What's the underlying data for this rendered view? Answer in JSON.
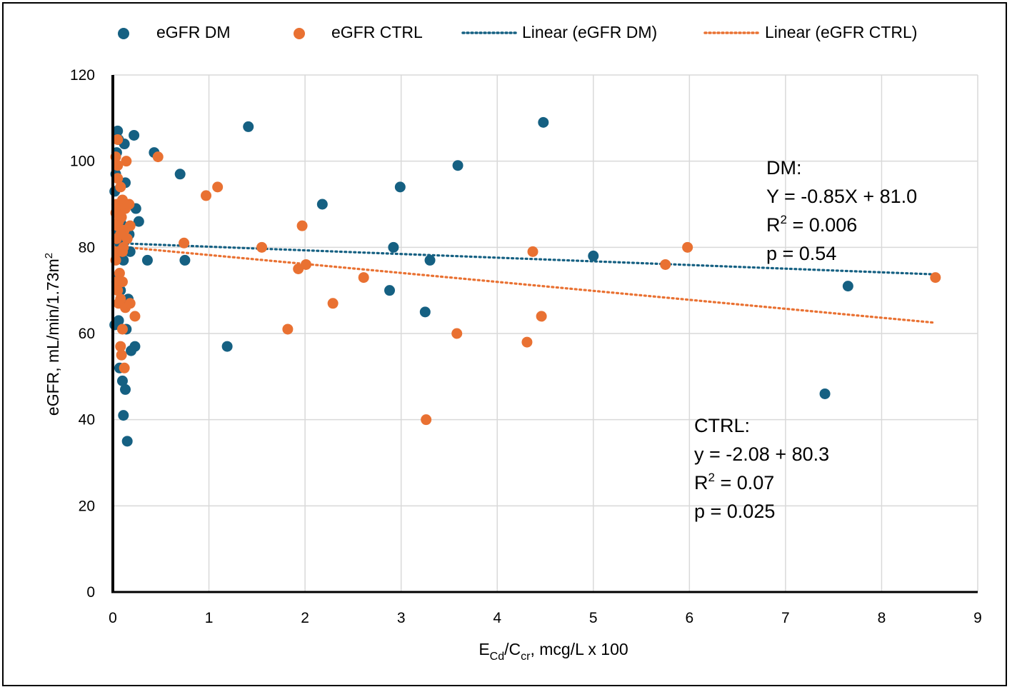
{
  "chart_data": {
    "type": "scatter",
    "title": "",
    "xlabel": {
      "main": "E",
      "sub1": "Cd",
      "mid": "/C",
      "sub2": "cr",
      "rest": ", mcg/L x 100"
    },
    "ylabel": {
      "main": "eGFR, mL/min/1.73m",
      "sup": "2"
    },
    "xlim": [
      0,
      9
    ],
    "ylim": [
      0,
      120
    ],
    "xticks": [
      "0",
      "1",
      "2",
      "3",
      "4",
      "5",
      "6",
      "7",
      "8",
      "9"
    ],
    "yticks": [
      "0",
      "20",
      "40",
      "60",
      "80",
      "100",
      "120"
    ],
    "grid": true,
    "legend_position": "top",
    "legend": [
      "eGFR DM",
      "eGFR CTRL",
      "Linear (eGFR DM)",
      "Linear (eGFR CTRL)"
    ],
    "colors": {
      "dm": "#156082",
      "ctrl": "#E97132"
    },
    "series": [
      {
        "name": "eGFR DM",
        "points": [
          [
            0.05,
            107
          ],
          [
            0.06,
            105
          ],
          [
            0.04,
            102
          ],
          [
            0.12,
            104
          ],
          [
            0.22,
            106
          ],
          [
            0.43,
            102
          ],
          [
            0.7,
            97
          ],
          [
            1.41,
            108
          ],
          [
            4.48,
            109
          ],
          [
            0.03,
            97
          ],
          [
            0.13,
            95
          ],
          [
            0.02,
            93
          ],
          [
            0.24,
            89
          ],
          [
            0.27,
            86
          ],
          [
            2.18,
            90
          ],
          [
            2.99,
            94
          ],
          [
            3.59,
            99
          ],
          [
            0.05,
            90
          ],
          [
            0.06,
            88
          ],
          [
            0.08,
            86
          ],
          [
            0.1,
            85
          ],
          [
            0.17,
            83
          ],
          [
            0.18,
            79
          ],
          [
            0.04,
            84
          ],
          [
            0.07,
            81
          ],
          [
            0.11,
            77
          ],
          [
            0.36,
            77
          ],
          [
            0.75,
            77
          ],
          [
            2.92,
            80
          ],
          [
            3.3,
            77
          ],
          [
            5.0,
            78
          ],
          [
            7.65,
            71
          ],
          [
            0.05,
            73
          ],
          [
            0.08,
            70
          ],
          [
            0.16,
            68
          ],
          [
            0.06,
            63
          ],
          [
            0.02,
            62
          ],
          [
            0.14,
            61
          ],
          [
            2.88,
            70
          ],
          [
            3.25,
            65
          ],
          [
            0.23,
            57
          ],
          [
            0.19,
            56
          ],
          [
            0.07,
            52
          ],
          [
            1.19,
            57
          ],
          [
            0.1,
            49
          ],
          [
            0.13,
            47
          ],
          [
            0.11,
            41
          ],
          [
            0.15,
            35
          ],
          [
            7.41,
            46
          ]
        ]
      },
      {
        "name": "eGFR CTRL",
        "points": [
          [
            0.05,
            105
          ],
          [
            0.47,
            101
          ],
          [
            0.03,
            101
          ],
          [
            0.05,
            99
          ],
          [
            0.14,
            100
          ],
          [
            0.05,
            96
          ],
          [
            0.08,
            94
          ],
          [
            0.97,
            92
          ],
          [
            1.09,
            94
          ],
          [
            0.04,
            90
          ],
          [
            0.07,
            88
          ],
          [
            0.1,
            91
          ],
          [
            0.13,
            89
          ],
          [
            0.17,
            90
          ],
          [
            0.03,
            88
          ],
          [
            0.06,
            86
          ],
          [
            0.09,
            87
          ],
          [
            0.05,
            85
          ],
          [
            0.12,
            84
          ],
          [
            0.18,
            85
          ],
          [
            0.04,
            82
          ],
          [
            0.08,
            83
          ],
          [
            0.15,
            82
          ],
          [
            0.11,
            80
          ],
          [
            0.05,
            79
          ],
          [
            0.74,
            81
          ],
          [
            1.55,
            80
          ],
          [
            1.97,
            85
          ],
          [
            0.03,
            77
          ],
          [
            0.1,
            79
          ],
          [
            1.93,
            75
          ],
          [
            2.01,
            76
          ],
          [
            2.61,
            73
          ],
          [
            0.07,
            74
          ],
          [
            0.1,
            72
          ],
          [
            0.04,
            72
          ],
          [
            0.05,
            70
          ],
          [
            0.08,
            68
          ],
          [
            0.06,
            67
          ],
          [
            0.13,
            66
          ],
          [
            0.18,
            67
          ],
          [
            0.23,
            64
          ],
          [
            0.1,
            61
          ],
          [
            0.08,
            57
          ],
          [
            0.09,
            55
          ],
          [
            0.12,
            52
          ],
          [
            2.29,
            67
          ],
          [
            1.82,
            61
          ],
          [
            3.58,
            60
          ],
          [
            4.31,
            58
          ],
          [
            4.37,
            79
          ],
          [
            4.46,
            64
          ],
          [
            3.26,
            40
          ],
          [
            5.75,
            76
          ],
          [
            5.98,
            80
          ],
          [
            8.56,
            73
          ]
        ]
      }
    ],
    "trendlines": [
      {
        "name": "Linear (eGFR DM)",
        "slope": -0.85,
        "intercept": 81.0,
        "x_range": [
          0,
          8.56
        ]
      },
      {
        "name": "Linear (eGFR CTRL)",
        "slope": -2.08,
        "intercept": 80.3,
        "x_range": [
          0,
          8.56
        ]
      }
    ],
    "annotations": {
      "dm": {
        "title": "DM:",
        "equation": "Y = -0.85X + 81.0",
        "r2_label": "R",
        "r2_sup": "2",
        "r2_value": " = 0.006",
        "p": "p = 0.54"
      },
      "ctrl": {
        "title": "CTRL:",
        "equation": "y = -2.08 + 80.3",
        "r2_label": "R",
        "r2_sup": "2",
        "r2_value": " = 0.07",
        "p": "p = 0.025"
      }
    }
  }
}
